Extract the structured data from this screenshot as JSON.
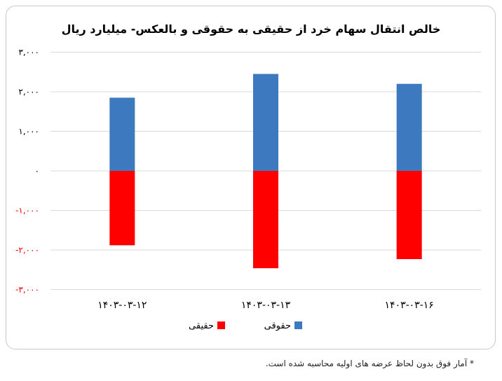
{
  "chart_data": {
    "type": "bar",
    "title": "خالص انتقال سهام خرد از حقیقی به حقوقی و بالعکس- میلیارد ریال",
    "categories": [
      "۱۴۰۳-۰۳-۱۲",
      "۱۴۰۳-۰۳-۱۳",
      "۱۴۰۳-۰۳-۱۶"
    ],
    "series": [
      {
        "name": "حقوقی",
        "color": "#3c79be",
        "values": [
          1850,
          2450,
          2200
        ]
      },
      {
        "name": "حقیقی",
        "color": "#ff0000",
        "values": [
          -1880,
          -2460,
          -2230
        ]
      }
    ],
    "ylim": [
      -3000,
      3000
    ],
    "yticks": [
      {
        "label": "۳,۰۰۰",
        "value": 3000,
        "color": "#000000"
      },
      {
        "label": "۲,۰۰۰",
        "value": 2000,
        "color": "#000000"
      },
      {
        "label": "۱,۰۰۰",
        "value": 1000,
        "color": "#000000"
      },
      {
        "label": "۰",
        "value": 0,
        "color": "#000000"
      },
      {
        "label": "-۱,۰۰۰",
        "value": -1000,
        "color": "#ff0000"
      },
      {
        "label": "-۲,۰۰۰",
        "value": -2000,
        "color": "#ff0000"
      },
      {
        "label": "-۳,۰۰۰",
        "value": -3000,
        "color": "#ff0000"
      }
    ],
    "grid": true,
    "legend": "bottom-center"
  },
  "footnote": "* آمار فوق بدون لحاظ عرضه های اولیه محاسبه شده است."
}
